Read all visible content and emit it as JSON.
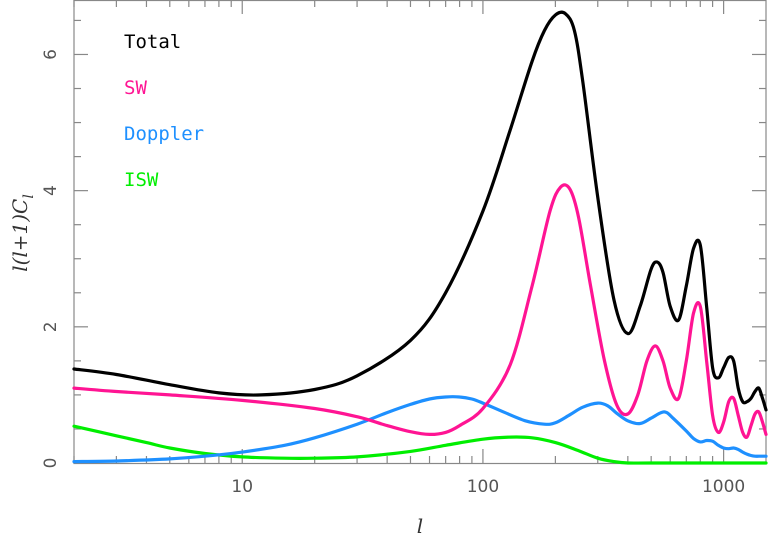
{
  "chart_data": {
    "type": "line",
    "title": "",
    "xlabel": "l",
    "ylabel": "l(l+1)C_l",
    "ylabel_parts": {
      "pre": "l(l+1)C",
      "sub": "l"
    },
    "x_scale": "log",
    "xlim": [
      2,
      1500
    ],
    "ylim": [
      0,
      6.8
    ],
    "x_ticks": [
      {
        "value": 10,
        "label": "10"
      },
      {
        "value": 100,
        "label": "100"
      },
      {
        "value": 1000,
        "label": "1000"
      }
    ],
    "y_ticks": [
      {
        "value": 0,
        "label": "0"
      },
      {
        "value": 2,
        "label": "2"
      },
      {
        "value": 4,
        "label": "4"
      },
      {
        "value": 6,
        "label": "6"
      }
    ],
    "grid": false,
    "legend_placement": "top-left",
    "series": [
      {
        "name": "Total",
        "color": "#000000",
        "x": [
          2,
          3,
          5,
          8,
          12,
          20,
          30,
          50,
          70,
          100,
          130,
          160,
          180,
          200,
          220,
          240,
          260,
          300,
          350,
          400,
          450,
          500,
          530,
          560,
          600,
          650,
          700,
          750,
          800,
          850,
          900,
          950,
          1000,
          1050,
          1100,
          1150,
          1200,
          1250,
          1300,
          1350,
          1400,
          1450,
          1500
        ],
        "y": [
          1.38,
          1.3,
          1.15,
          1.03,
          1.0,
          1.08,
          1.28,
          1.8,
          2.5,
          3.7,
          4.9,
          5.9,
          6.35,
          6.58,
          6.6,
          6.35,
          5.6,
          3.9,
          2.4,
          1.9,
          2.3,
          2.85,
          2.95,
          2.8,
          2.3,
          2.1,
          2.6,
          3.15,
          3.2,
          2.3,
          1.4,
          1.25,
          1.4,
          1.55,
          1.5,
          1.1,
          0.9,
          0.9,
          0.95,
          1.05,
          1.1,
          0.95,
          0.78
        ]
      },
      {
        "name": "SW",
        "color": "#ff1493",
        "x": [
          2,
          3,
          5,
          10,
          20,
          30,
          40,
          50,
          60,
          70,
          80,
          100,
          130,
          160,
          190,
          210,
          230,
          250,
          280,
          320,
          360,
          400,
          440,
          480,
          520,
          560,
          600,
          650,
          700,
          750,
          800,
          850,
          900,
          950,
          1000,
          1050,
          1100,
          1150,
          1200,
          1250,
          1300,
          1350,
          1400,
          1450,
          1500
        ],
        "y": [
          1.1,
          1.05,
          1.0,
          0.92,
          0.8,
          0.68,
          0.55,
          0.46,
          0.42,
          0.45,
          0.55,
          0.8,
          1.45,
          2.6,
          3.7,
          4.05,
          4.02,
          3.6,
          2.6,
          1.5,
          0.85,
          0.72,
          1.0,
          1.5,
          1.72,
          1.5,
          1.1,
          0.95,
          1.5,
          2.2,
          2.3,
          1.5,
          0.7,
          0.45,
          0.6,
          0.9,
          0.95,
          0.7,
          0.45,
          0.38,
          0.55,
          0.72,
          0.75,
          0.6,
          0.42
        ]
      },
      {
        "name": "Doppler",
        "color": "#1e90ff",
        "x": [
          2,
          3,
          5,
          8,
          10,
          15,
          20,
          30,
          40,
          50,
          60,
          70,
          80,
          90,
          100,
          120,
          150,
          180,
          200,
          230,
          260,
          300,
          330,
          360,
          400,
          450,
          500,
          550,
          580,
          620,
          700,
          750,
          800,
          850,
          900,
          950,
          1000,
          1050,
          1100,
          1150,
          1200,
          1250,
          1300,
          1350,
          1400,
          1450,
          1500
        ],
        "y": [
          0.02,
          0.03,
          0.06,
          0.12,
          0.16,
          0.26,
          0.37,
          0.57,
          0.74,
          0.86,
          0.94,
          0.97,
          0.97,
          0.94,
          0.88,
          0.76,
          0.62,
          0.57,
          0.59,
          0.71,
          0.82,
          0.88,
          0.84,
          0.73,
          0.62,
          0.58,
          0.66,
          0.74,
          0.74,
          0.65,
          0.47,
          0.36,
          0.31,
          0.33,
          0.32,
          0.26,
          0.22,
          0.21,
          0.22,
          0.2,
          0.16,
          0.13,
          0.11,
          0.1,
          0.1,
          0.1,
          0.1
        ]
      },
      {
        "name": "ISW",
        "color": "#00ee00",
        "x": [
          2,
          3,
          4,
          5,
          7,
          10,
          15,
          20,
          30,
          50,
          70,
          100,
          130,
          160,
          200,
          250,
          300,
          350,
          400,
          500,
          1000,
          1500
        ],
        "y": [
          0.54,
          0.4,
          0.3,
          0.22,
          0.14,
          0.09,
          0.07,
          0.07,
          0.09,
          0.17,
          0.26,
          0.35,
          0.38,
          0.37,
          0.3,
          0.18,
          0.07,
          0.02,
          0.0,
          0.0,
          0.0,
          0.0
        ]
      }
    ]
  }
}
